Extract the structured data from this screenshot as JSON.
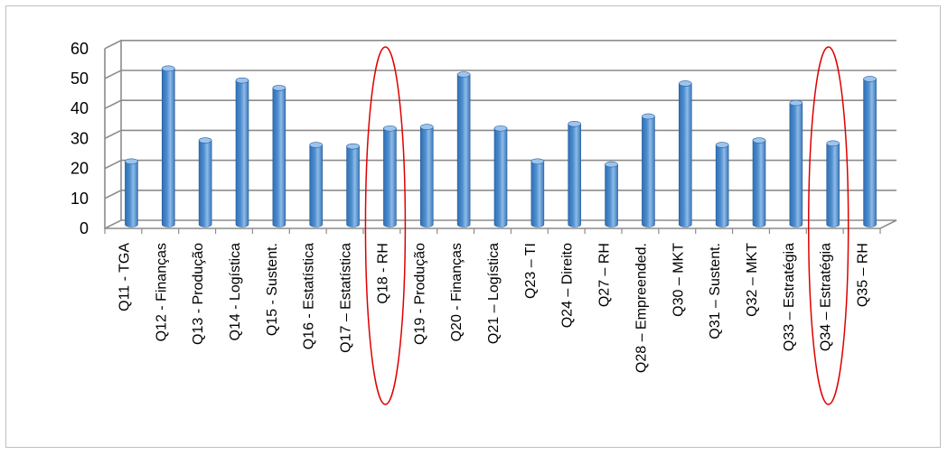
{
  "chart_data": {
    "type": "bar",
    "title": "",
    "xlabel": "",
    "ylabel": "",
    "ylim": [
      0,
      60
    ],
    "yticks": [
      0,
      10,
      20,
      30,
      40,
      50,
      60
    ],
    "grid": true,
    "legend": "none",
    "bar_color": "#4f8fd0",
    "highlight_color": "#e00000",
    "categories": [
      "Q11 - TGA",
      "Q12 - Finanças",
      "Q13 - Produção",
      "Q14 - Logística",
      "Q15 - Sustent.",
      "Q16 - Estatística",
      "Q17 – Estatística",
      "Q18 - RH",
      "Q19 - Produção",
      "Q20 - Finanças",
      "Q21 – Logística",
      "Q23 – TI",
      "Q24 – Direito",
      "Q27 – RH",
      "Q28 – Empreended.",
      "Q30 – MKT",
      "Q31 – Sustent.",
      "Q32 – MKT",
      "Q33 – Estratégia",
      "Q34 – Estratégia",
      "Q35 – RH"
    ],
    "values": [
      21,
      52,
      28,
      48,
      45.5,
      26.5,
      26,
      32,
      32.5,
      50,
      32,
      21,
      33.5,
      20,
      36,
      47,
      26.5,
      28,
      40.5,
      27,
      48.5
    ],
    "highlighted": [
      "Q18 - RH",
      "Q34 – Estratégia"
    ]
  }
}
